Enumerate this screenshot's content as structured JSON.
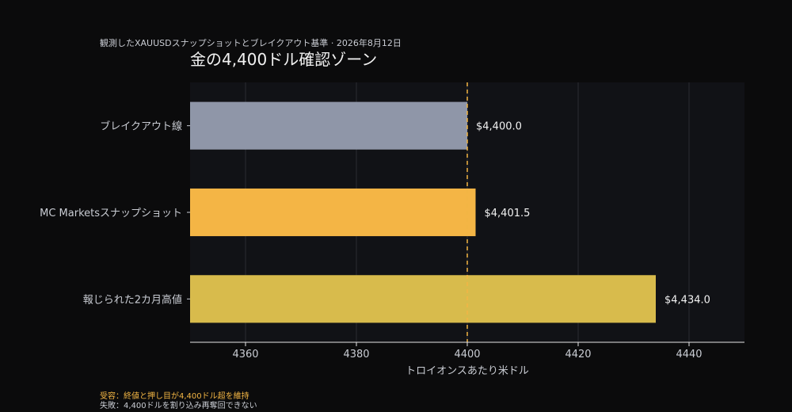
{
  "header": {
    "subtitle": "観測したXAUUSDスナップショットとブレイクアウト基準 · 2026年8月12日",
    "title": "金の4,400ドル確認ゾーン"
  },
  "notes": {
    "accept": "受容：終値と押し目が4,400ドル超を維持",
    "fail": "失敗：4,400ドルを割り込み再奪回できない"
  },
  "colors": {
    "background": "#0b0b0c",
    "plot_bg": "#111216",
    "grid": "#2a2c33",
    "reference_line": "#f2b544",
    "axis_text": "#c9ccd3"
  },
  "chart_data": {
    "type": "bar",
    "orientation": "horizontal",
    "categories": [
      "ブレイクアウト線",
      "MC Marketsスナップショット",
      "報じられた2カ月高値"
    ],
    "values": [
      4400.0,
      4401.5,
      4434.0
    ],
    "value_labels": [
      "$4,400.0",
      "$4,401.5",
      "$4,434.0"
    ],
    "bar_colors": [
      "#8f96a8",
      "#f4b545",
      "#d8bb4c"
    ],
    "xlabel": "トロイオンスあたり米ドル",
    "xlim": [
      4350,
      4450
    ],
    "xticks": [
      4360,
      4380,
      4400,
      4420,
      4440
    ],
    "reference_line": 4400,
    "grid": true
  }
}
